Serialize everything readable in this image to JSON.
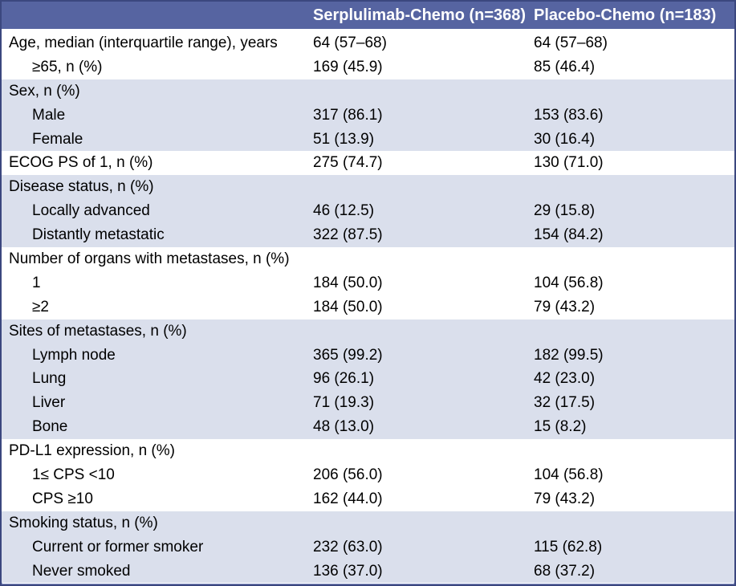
{
  "table": {
    "columns": [
      "",
      "Serplulimab-Chemo (n=368)",
      "Placebo-Chemo (n=183)"
    ],
    "sections": [
      {
        "band": "white",
        "rows": [
          {
            "label": "Age, median (interquartile range), years",
            "indent": false,
            "values": [
              "64 (57–68)",
              "64 (57–68)"
            ]
          },
          {
            "label": "≥65, n (%)",
            "indent": true,
            "values": [
              "169 (45.9)",
              "85 (46.4)"
            ]
          }
        ]
      },
      {
        "band": "light",
        "rows": [
          {
            "label": "Sex, n (%)",
            "indent": false,
            "values": [
              "",
              ""
            ]
          },
          {
            "label": "Male",
            "indent": true,
            "values": [
              "317 (86.1)",
              "153 (83.6)"
            ]
          },
          {
            "label": "Female",
            "indent": true,
            "values": [
              "51 (13.9)",
              "30 (16.4)"
            ]
          }
        ]
      },
      {
        "band": "white",
        "rows": [
          {
            "label": "ECOG PS of 1, n (%)",
            "indent": false,
            "values": [
              "275 (74.7)",
              "130 (71.0)"
            ]
          }
        ]
      },
      {
        "band": "light",
        "rows": [
          {
            "label": "Disease status, n (%)",
            "indent": false,
            "values": [
              "",
              ""
            ]
          },
          {
            "label": "Locally advanced",
            "indent": true,
            "values": [
              "46 (12.5)",
              "29 (15.8)"
            ]
          },
          {
            "label": "Distantly metastatic",
            "indent": true,
            "values": [
              "322 (87.5)",
              "154 (84.2)"
            ]
          }
        ]
      },
      {
        "band": "white",
        "rows": [
          {
            "label": "Number of organs with metastases, n (%)",
            "indent": false,
            "values": [
              "",
              ""
            ]
          },
          {
            "label": "1",
            "indent": true,
            "values": [
              "184 (50.0)",
              "104 (56.8)"
            ]
          },
          {
            "label": "≥2",
            "indent": true,
            "values": [
              "184 (50.0)",
              "79 (43.2)"
            ]
          }
        ]
      },
      {
        "band": "light",
        "rows": [
          {
            "label": "Sites of metastases, n (%)",
            "indent": false,
            "values": [
              "",
              ""
            ]
          },
          {
            "label": "Lymph node",
            "indent": true,
            "values": [
              "365 (99.2)",
              "182 (99.5)"
            ]
          },
          {
            "label": "Lung",
            "indent": true,
            "values": [
              "96 (26.1)",
              "42 (23.0)"
            ]
          },
          {
            "label": "Liver",
            "indent": true,
            "values": [
              "71 (19.3)",
              "32 (17.5)"
            ]
          },
          {
            "label": "Bone",
            "indent": true,
            "values": [
              "48 (13.0)",
              "15 (8.2)"
            ]
          }
        ]
      },
      {
        "band": "white",
        "rows": [
          {
            "label": "PD-L1 expression, n (%)",
            "indent": false,
            "values": [
              "",
              ""
            ]
          },
          {
            "label": "1≤ CPS <10",
            "indent": true,
            "values": [
              "206 (56.0)",
              "104 (56.8)"
            ]
          },
          {
            "label": "CPS ≥10",
            "indent": true,
            "values": [
              "162 (44.0)",
              "79 (43.2)"
            ]
          }
        ]
      },
      {
        "band": "light",
        "rows": [
          {
            "label": "Smoking status, n (%)",
            "indent": false,
            "values": [
              "",
              ""
            ]
          },
          {
            "label": "Current or former smoker",
            "indent": true,
            "values": [
              "232 (63.0)",
              "115 (62.8)"
            ]
          },
          {
            "label": "Never smoked",
            "indent": true,
            "values": [
              "136 (37.0)",
              "68 (37.2)"
            ]
          }
        ]
      }
    ]
  },
  "colors": {
    "header_bg": "#5664a1",
    "band_light": "#dadfec",
    "band_white": "#ffffff",
    "border_dark": "#3b477f",
    "border_light": "#8d99c9",
    "text": "#000000",
    "header_text": "#ffffff"
  }
}
